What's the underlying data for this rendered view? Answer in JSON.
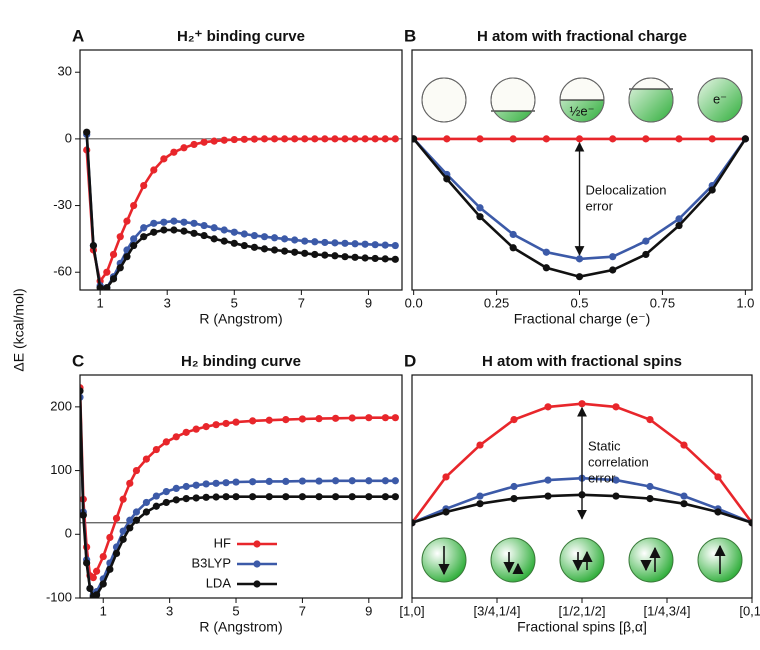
{
  "y_label": "ΔE (kcal/mol)",
  "chart_data": [
    {
      "type": "line",
      "label": "A",
      "title": "H₂⁺ binding curve",
      "x_label": "R (Angstrom)",
      "x": [
        0.6,
        0.8,
        1.0,
        1.2,
        1.4,
        1.6,
        1.8,
        2.0,
        2.3,
        2.6,
        2.9,
        3.2,
        3.5,
        3.8,
        4.1,
        4.4,
        4.7,
        5.0,
        5.3,
        5.6,
        5.9,
        6.2,
        6.5,
        6.8,
        7.1,
        7.4,
        7.7,
        8.0,
        8.3,
        8.6,
        8.9,
        9.2,
        9.5,
        9.8
      ],
      "series": [
        {
          "color": "#e8262b",
          "values": [
            -5,
            -50,
            -64,
            -60,
            -52,
            -44,
            -37,
            -30,
            -21,
            -14,
            -9,
            -6,
            -4,
            -2.5,
            -1.5,
            -1,
            -0.6,
            -0.3,
            -0.2,
            -0.1,
            0,
            0,
            0,
            0,
            0,
            0,
            0,
            0,
            0,
            0,
            0,
            0,
            0,
            0
          ]
        },
        {
          "color": "#3c5aa8",
          "values": [
            2,
            -48,
            -66,
            -67,
            -62,
            -56,
            -50,
            -45,
            -40,
            -38,
            -37.5,
            -37,
            -37.5,
            -38,
            -39,
            -40,
            -41,
            -42,
            -42.8,
            -43.5,
            -44,
            -44.5,
            -45,
            -45.5,
            -46,
            -46.3,
            -46.6,
            -46.8,
            -47,
            -47.2,
            -47.4,
            -47.6,
            -47.8,
            -48
          ]
        },
        {
          "color": "#111111",
          "values": [
            3,
            -48,
            -67,
            -67,
            -63,
            -58,
            -53,
            -48,
            -44,
            -42,
            -41,
            -41,
            -41.5,
            -42.5,
            -43.5,
            -45,
            -46,
            -47,
            -48,
            -48.8,
            -49.5,
            -50,
            -50.5,
            -51,
            -51.5,
            -52,
            -52.3,
            -52.6,
            -53,
            -53.3,
            -53.6,
            -53.8,
            -54,
            -54.2
          ]
        }
      ],
      "xlim": [
        0.4,
        10
      ],
      "xticks": [
        1,
        3,
        5,
        7,
        9
      ],
      "ylim": [
        -68,
        40
      ],
      "yticks": [
        -60,
        -30,
        0,
        30
      ],
      "reference_line": 0
    },
    {
      "type": "line",
      "label": "B",
      "title": "H atom with fractional charge",
      "x_label": "Fractional charge (e⁻)",
      "x": [
        0,
        0.1,
        0.2,
        0.3,
        0.4,
        0.5,
        0.6,
        0.7,
        0.8,
        0.9,
        1.0
      ],
      "series": [
        {
          "color": "#e8262b",
          "values": [
            0,
            0,
            0,
            0,
            0,
            0,
            0,
            0,
            0,
            0,
            0
          ]
        },
        {
          "color": "#3c5aa8",
          "values": [
            0,
            -16,
            -31,
            -43,
            -51,
            -54,
            -53,
            -46,
            -36,
            -21,
            0
          ]
        },
        {
          "color": "#111111",
          "values": [
            0,
            -18,
            -35,
            -49,
            -58,
            -62,
            -59,
            -52,
            -39,
            -23,
            0
          ]
        }
      ],
      "xlim": [
        -0.005,
        1.02
      ],
      "xticks": [
        {
          "value": 0,
          "label": "0.0"
        },
        0.25,
        0.5,
        0.75,
        {
          "value": 1,
          "label": "1.0"
        }
      ],
      "ylim": [
        -68,
        40
      ],
      "annotation": [
        "Delocalization",
        "error"
      ],
      "icon_labels": [
        "½e⁻",
        "e⁻"
      ]
    },
    {
      "type": "line",
      "label": "C",
      "title": "H₂ binding curve",
      "x_label": "R (Angstrom)",
      "x": [
        0.3,
        0.4,
        0.5,
        0.6,
        0.7,
        0.8,
        1.0,
        1.2,
        1.4,
        1.6,
        1.8,
        2.0,
        2.3,
        2.6,
        2.9,
        3.2,
        3.5,
        3.8,
        4.1,
        4.4,
        4.7,
        5.0,
        5.5,
        6.0,
        6.5,
        7.0,
        7.5,
        8.0,
        8.5,
        9.0,
        9.5,
        9.8
      ],
      "series": [
        {
          "name": "HF",
          "color": "#e8262b",
          "values": [
            230,
            55,
            -20,
            -65,
            -68,
            -58,
            -35,
            -5,
            25,
            55,
            80,
            100,
            118,
            133,
            145,
            153,
            160,
            165,
            169,
            172,
            174,
            176,
            178,
            179,
            180,
            181,
            181.5,
            182,
            182.5,
            183,
            183,
            183
          ]
        },
        {
          "name": "B3LYP",
          "color": "#3c5aa8",
          "values": [
            215,
            35,
            -40,
            -85,
            -95,
            -90,
            -70,
            -45,
            -20,
            5,
            22,
            35,
            50,
            60,
            67,
            72,
            75,
            77,
            79,
            80,
            81,
            82,
            82.5,
            83,
            83,
            83.5,
            83.5,
            84,
            84,
            84,
            84,
            84
          ]
        },
        {
          "name": "LDA",
          "color": "#111111",
          "values": [
            225,
            30,
            -45,
            -85,
            -98,
            -95,
            -78,
            -55,
            -30,
            -8,
            10,
            22,
            35,
            44,
            50,
            54,
            56,
            57,
            58,
            58.5,
            59,
            59,
            59,
            59,
            59,
            59,
            59,
            59,
            59,
            59,
            59,
            59
          ]
        }
      ],
      "xlim": [
        0.3,
        10
      ],
      "xticks": [
        1,
        3,
        5,
        7,
        9
      ],
      "ylim": [
        -100,
        250
      ],
      "yticks": [
        -100,
        0,
        100,
        200
      ],
      "reference_line": 18,
      "legend": "lower center"
    },
    {
      "type": "line",
      "label": "D",
      "title": "H atom with fractional spins",
      "x_label": "Fractional spins [β,α]",
      "x": [
        0,
        0.1,
        0.2,
        0.3,
        0.4,
        0.5,
        0.6,
        0.7,
        0.8,
        0.9,
        1.0
      ],
      "series": [
        {
          "color": "#e8262b",
          "values": [
            18,
            90,
            140,
            180,
            200,
            205,
            200,
            180,
            140,
            90,
            18
          ]
        },
        {
          "color": "#3c5aa8",
          "values": [
            18,
            40,
            60,
            75,
            85,
            88,
            85,
            75,
            60,
            40,
            18
          ]
        },
        {
          "color": "#111111",
          "values": [
            18,
            35,
            48,
            56,
            60,
            62,
            60,
            56,
            48,
            35,
            18
          ]
        }
      ],
      "xlim": [
        0,
        1
      ],
      "xticks": [
        {
          "value": 0,
          "label": "[1,0]"
        },
        {
          "value": 0.25,
          "label": "[3/4,1/4]"
        },
        {
          "value": 0.5,
          "label": "[1/2,1/2]"
        },
        {
          "value": 0.75,
          "label": "[1/4,3/4]"
        },
        {
          "value": 1,
          "label": "[0,1]"
        }
      ],
      "ylim": [
        -100,
        250
      ],
      "annotation": [
        "Static",
        "correlation",
        "error"
      ]
    }
  ]
}
